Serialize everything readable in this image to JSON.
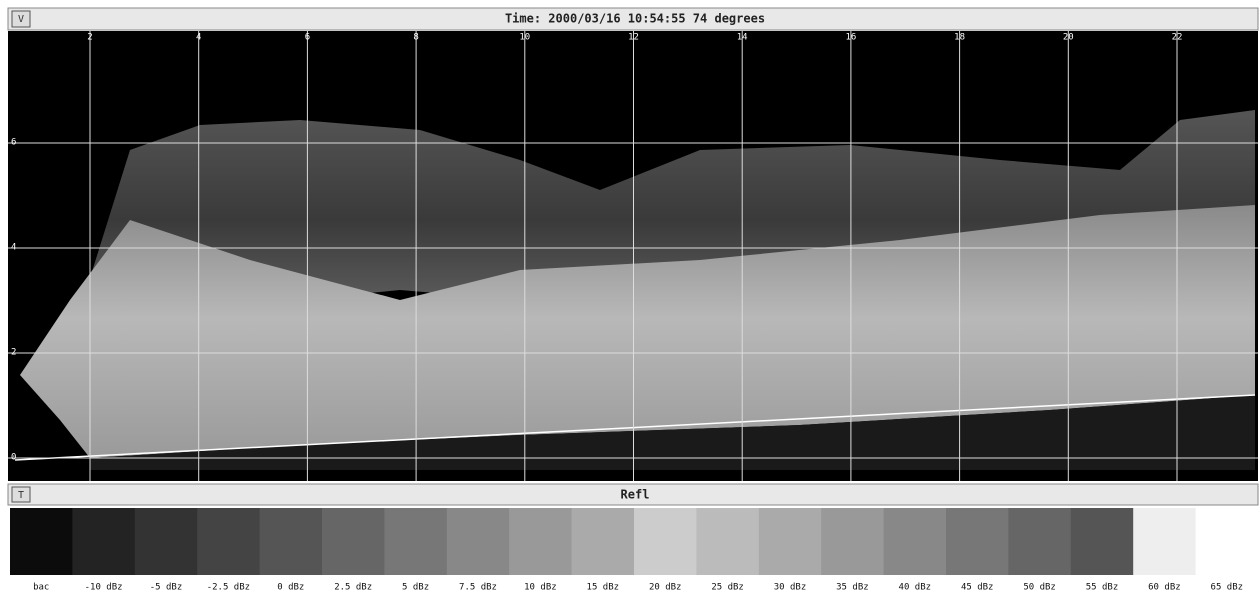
{
  "top_panel": {
    "button": "V",
    "title": "Time: 2000/03/16 10:54:55 74 degrees",
    "xticks": [
      2,
      4,
      6,
      8,
      10,
      12,
      14,
      16,
      18,
      20,
      22
    ],
    "yticks": [
      0,
      2,
      4,
      6
    ]
  },
  "bottom_panel": {
    "button": "T",
    "title": "Refl",
    "legend": [
      {
        "label": "bac",
        "color": "#0c0c0c"
      },
      {
        "label": "-10 dBz",
        "color": "#232323"
      },
      {
        "label": "-5 dBz",
        "color": "#333333"
      },
      {
        "label": "-2.5 dBz",
        "color": "#444444"
      },
      {
        "label": "0 dBz",
        "color": "#555555"
      },
      {
        "label": "2.5 dBz",
        "color": "#666666"
      },
      {
        "label": "5 dBz",
        "color": "#777777"
      },
      {
        "label": "7.5 dBz",
        "color": "#888888"
      },
      {
        "label": "10 dBz",
        "color": "#999999"
      },
      {
        "label": "15 dBz",
        "color": "#aaaaaa"
      },
      {
        "label": "20 dBz",
        "color": "#cccccc"
      },
      {
        "label": "25 dBz",
        "color": "#bbbbbb"
      },
      {
        "label": "30 dBz",
        "color": "#aaaaaa"
      },
      {
        "label": "35 dBz",
        "color": "#999999"
      },
      {
        "label": "40 dBz",
        "color": "#888888"
      },
      {
        "label": "45 dBz",
        "color": "#777777"
      },
      {
        "label": "50 dBz",
        "color": "#666666"
      },
      {
        "label": "55 dBz",
        "color": "#555555"
      },
      {
        "label": "60 dBz",
        "color": "#eeeeee"
      },
      {
        "label": "65 dBz",
        "color": "#ffffff"
      }
    ]
  }
}
